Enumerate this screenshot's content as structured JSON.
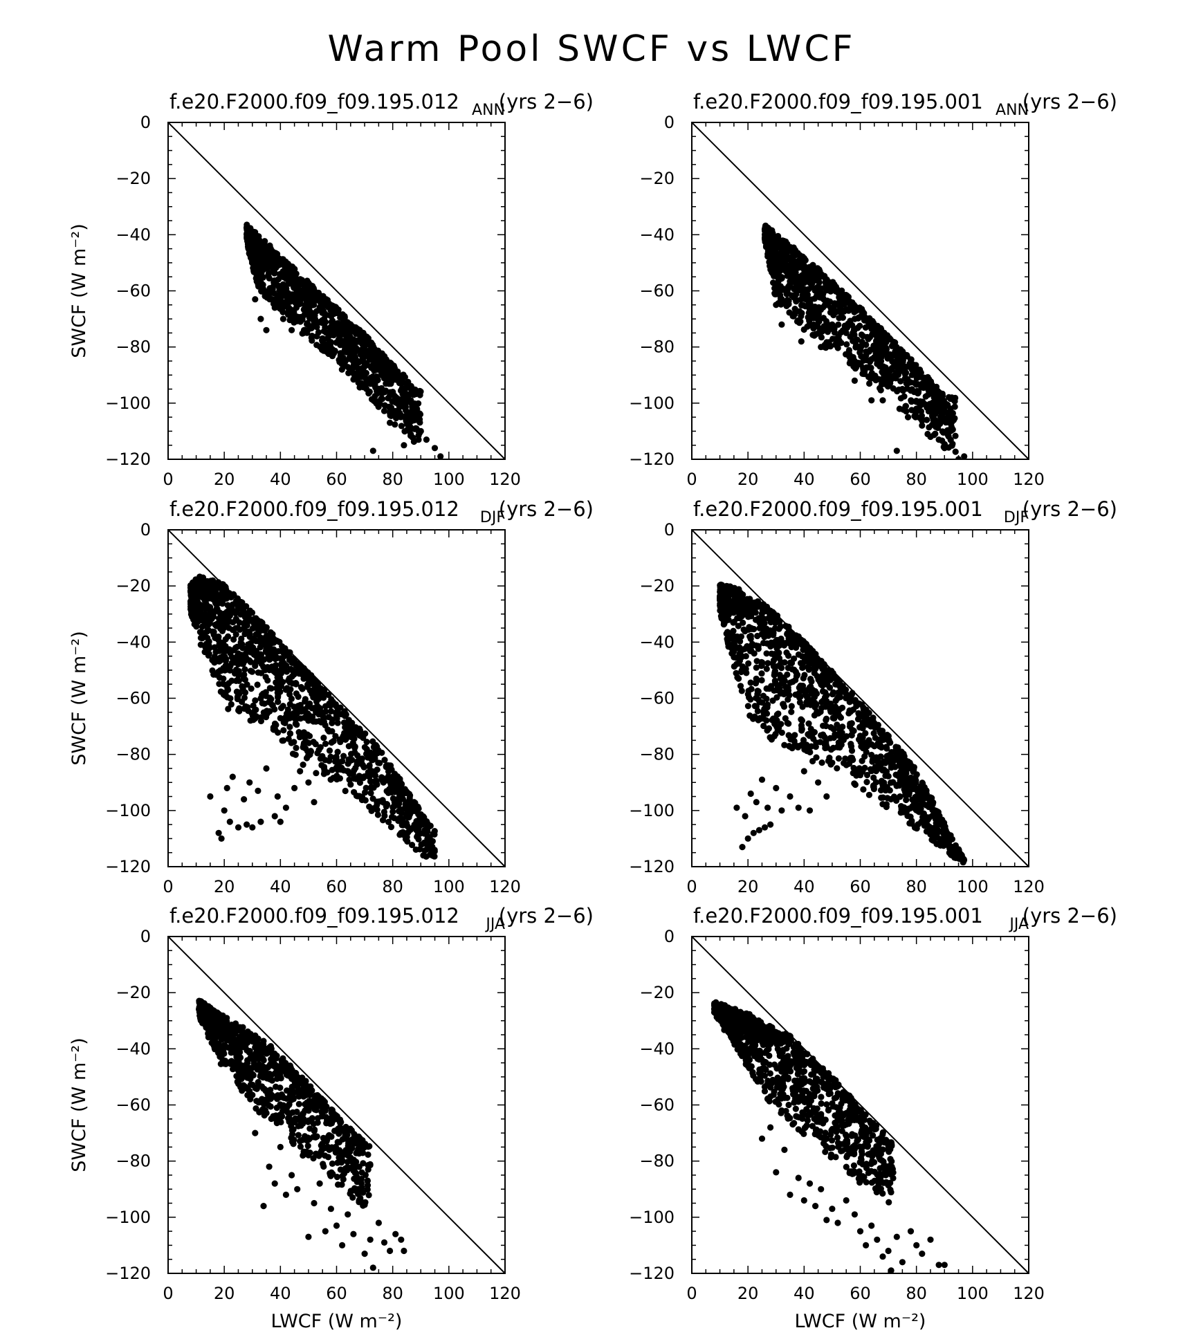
{
  "figure": {
    "title": "Warm Pool SWCF vs LWCF"
  },
  "chart_data": [
    {
      "type": "scatter",
      "case": "f.e20.F2000.f09_f09.195.012",
      "years": "(yrs 2−6)",
      "season": "ANN",
      "xlabel": "",
      "ylabel": "SWCF (W m⁻²)",
      "xlim": [
        0,
        120
      ],
      "ylim": [
        -120,
        0
      ],
      "xticks": [
        "0",
        "20",
        "40",
        "60",
        "80",
        "100",
        "120"
      ],
      "yticks": [
        "0",
        "−20",
        "−40",
        "−60",
        "−80",
        "−100",
        "−120"
      ],
      "reference_line": [
        [
          0,
          0
        ],
        [
          120,
          -120
        ]
      ],
      "marker_color": "#000000",
      "cloud": {
        "ridge": [
          [
            28,
            -37
          ],
          [
            40,
            -48
          ],
          [
            55,
            -62
          ],
          [
            70,
            -76
          ],
          [
            88,
            -95
          ]
        ],
        "lower": [
          [
            28,
            -43
          ],
          [
            32,
            -60
          ],
          [
            45,
            -72
          ],
          [
            62,
            -88
          ],
          [
            78,
            -104
          ],
          [
            90,
            -118
          ]
        ],
        "count": 1200
      },
      "x": [
        31,
        33,
        35,
        38,
        41,
        44,
        47,
        52,
        55,
        58,
        63,
        66,
        67,
        70,
        72,
        73,
        75,
        76,
        78,
        80,
        82,
        85,
        87,
        88,
        90,
        92,
        95,
        97,
        79,
        84,
        86
      ],
      "y": [
        -63,
        -70,
        -74,
        -66,
        -70,
        -74,
        -64,
        -71,
        -78,
        -67,
        -80,
        -84,
        -90,
        -86,
        -92,
        -117,
        -82,
        -90,
        -88,
        -96,
        -100,
        -99,
        -104,
        -106,
        -110,
        -113,
        -116,
        -119,
        -107,
        -115,
        -110
      ]
    },
    {
      "type": "scatter",
      "case": "f.e20.F2000.f09_f09.195.001",
      "years": "(yrs 2−6)",
      "season": "ANN",
      "xlabel": "",
      "ylabel": "",
      "xlim": [
        0,
        120
      ],
      "ylim": [
        -120,
        0
      ],
      "xticks": [
        "0",
        "20",
        "40",
        "60",
        "80",
        "100",
        "120"
      ],
      "yticks": [
        "0",
        "−20",
        "−40",
        "−60",
        "−80",
        "−100",
        "−120"
      ],
      "reference_line": [
        [
          0,
          0
        ],
        [
          120,
          -120
        ]
      ],
      "marker_color": "#000000",
      "cloud": {
        "ridge": [
          [
            26,
            -37
          ],
          [
            40,
            -48
          ],
          [
            55,
            -62
          ],
          [
            70,
            -76
          ],
          [
            90,
            -98
          ]
        ],
        "lower": [
          [
            26,
            -42
          ],
          [
            30,
            -64
          ],
          [
            42,
            -76
          ],
          [
            60,
            -90
          ],
          [
            78,
            -104
          ],
          [
            94,
            -120
          ]
        ],
        "count": 1100
      },
      "x": [
        30,
        32,
        36,
        39,
        42,
        46,
        50,
        55,
        58,
        60,
        64,
        66,
        68,
        70,
        73,
        75,
        77,
        80,
        82,
        84,
        86,
        88,
        90,
        92,
        95,
        97,
        74,
        85
      ],
      "y": [
        -65,
        -72,
        -69,
        -78,
        -70,
        -80,
        -72,
        -75,
        -92,
        -81,
        -99,
        -86,
        -99,
        -90,
        -117,
        -95,
        -105,
        -102,
        -108,
        -111,
        -106,
        -113,
        -116,
        -110,
        -120,
        -119,
        -102,
        -112
      ]
    },
    {
      "type": "scatter",
      "case": "f.e20.F2000.f09_f09.195.012",
      "years": "(yrs 2−6)",
      "season": "DJF",
      "xlabel": "",
      "ylabel": "SWCF (W m⁻²)",
      "xlim": [
        0,
        120
      ],
      "ylim": [
        -120,
        0
      ],
      "xticks": [
        "0",
        "20",
        "40",
        "60",
        "80",
        "100",
        "120"
      ],
      "yticks": [
        "0",
        "−20",
        "−40",
        "−60",
        "−80",
        "−100",
        "−120"
      ],
      "reference_line": [
        [
          0,
          0
        ],
        [
          120,
          -120
        ]
      ],
      "marker_color": "#000000",
      "cloud": {
        "ridge": [
          [
            8,
            -20
          ],
          [
            11,
            -17
          ],
          [
            20,
            -20
          ],
          [
            35,
            -35
          ],
          [
            55,
            -57
          ],
          [
            75,
            -78
          ],
          [
            95,
            -108
          ]
        ],
        "lower": [
          [
            7,
            -26
          ],
          [
            12,
            -42
          ],
          [
            22,
            -66
          ],
          [
            36,
            -70
          ],
          [
            48,
            -84
          ],
          [
            62,
            -92
          ],
          [
            78,
            -105
          ],
          [
            92,
            -117
          ]
        ],
        "count": 1300
      },
      "x": [
        15,
        18,
        19,
        20,
        21,
        22,
        23,
        25,
        27,
        28,
        29,
        30,
        32,
        33,
        35,
        38,
        39,
        40,
        42,
        45,
        47,
        50,
        52
      ],
      "y": [
        -95,
        -108,
        -110,
        -100,
        -92,
        -104,
        -88,
        -106,
        -96,
        -105,
        -90,
        -106,
        -93,
        -104,
        -85,
        -102,
        -95,
        -104,
        -99,
        -92,
        -86,
        -90,
        -97
      ]
    },
    {
      "type": "scatter",
      "case": "f.e20.F2000.f09_f09.195.001",
      "years": "(yrs 2−6)",
      "season": "DJF",
      "xlabel": "",
      "ylabel": "",
      "xlim": [
        0,
        120
      ],
      "ylim": [
        -120,
        0
      ],
      "xticks": [
        "0",
        "20",
        "40",
        "60",
        "80",
        "100",
        "120"
      ],
      "yticks": [
        "0",
        "−20",
        "−40",
        "−60",
        "−80",
        "−100",
        "−120"
      ],
      "reference_line": [
        [
          0,
          0
        ],
        [
          120,
          -120
        ]
      ],
      "marker_color": "#000000",
      "cloud": {
        "ridge": [
          [
            10,
            -20
          ],
          [
            15,
            -21
          ],
          [
            25,
            -26
          ],
          [
            40,
            -40
          ],
          [
            60,
            -62
          ],
          [
            80,
            -86
          ],
          [
            97,
            -118
          ]
        ],
        "lower": [
          [
            9,
            -24
          ],
          [
            14,
            -46
          ],
          [
            22,
            -70
          ],
          [
            38,
            -80
          ],
          [
            52,
            -88
          ],
          [
            66,
            -96
          ],
          [
            82,
            -108
          ],
          [
            95,
            -118
          ]
        ],
        "count": 1300
      },
      "x": [
        16,
        18,
        19,
        20,
        21,
        22,
        23,
        24,
        25,
        26,
        27,
        28,
        30,
        32,
        35,
        38,
        40,
        42,
        45,
        48,
        50
      ],
      "y": [
        -99,
        -113,
        -102,
        -110,
        -94,
        -108,
        -97,
        -107,
        -89,
        -106,
        -99,
        -105,
        -92,
        -100,
        -95,
        -99,
        -86,
        -100,
        -90,
        -95,
        -83
      ]
    },
    {
      "type": "scatter",
      "case": "f.e20.F2000.f09_f09.195.012",
      "years": "(yrs 2−6)",
      "season": "JJA",
      "xlabel": "LWCF (W m⁻²)",
      "ylabel": "SWCF (W m⁻²)",
      "xlim": [
        0,
        120
      ],
      "ylim": [
        -120,
        0
      ],
      "xticks": [
        "0",
        "20",
        "40",
        "60",
        "80",
        "100",
        "120"
      ],
      "yticks": [
        "0",
        "−20",
        "−40",
        "−60",
        "−80",
        "−100",
        "−120"
      ],
      "reference_line": [
        [
          0,
          0
        ],
        [
          120,
          -120
        ]
      ],
      "marker_color": "#000000",
      "cloud": {
        "ridge": [
          [
            11,
            -23
          ],
          [
            20,
            -29
          ],
          [
            35,
            -38
          ],
          [
            50,
            -53
          ],
          [
            62,
            -66
          ],
          [
            70,
            -74
          ]
        ],
        "lower": [
          [
            10,
            -26
          ],
          [
            18,
            -44
          ],
          [
            30,
            -60
          ],
          [
            45,
            -74
          ],
          [
            60,
            -88
          ],
          [
            72,
            -98
          ]
        ],
        "count": 950
      },
      "x": [
        31,
        34,
        36,
        38,
        40,
        42,
        44,
        46,
        48,
        50,
        52,
        54,
        56,
        58,
        60,
        62,
        64,
        66,
        68,
        70,
        72,
        73,
        75,
        77,
        79,
        81,
        83,
        84
      ],
      "y": [
        -70,
        -96,
        -82,
        -88,
        -75,
        -92,
        -85,
        -90,
        -78,
        -107,
        -95,
        -88,
        -105,
        -97,
        -103,
        -110,
        -99,
        -106,
        -94,
        -113,
        -108,
        -118,
        -102,
        -109,
        -112,
        -106,
        -108,
        -112
      ]
    },
    {
      "type": "scatter",
      "case": "f.e20.F2000.f09_f09.195.001",
      "years": "(yrs 2−6)",
      "season": "JJA",
      "xlabel": "LWCF (W m⁻²)",
      "ylabel": "",
      "xlim": [
        0,
        120
      ],
      "ylim": [
        -120,
        0
      ],
      "xticks": [
        "0",
        "20",
        "40",
        "60",
        "80",
        "100",
        "120"
      ],
      "yticks": [
        "0",
        "−20",
        "−40",
        "−60",
        "−80",
        "−100",
        "−120"
      ],
      "reference_line": [
        [
          0,
          0
        ],
        [
          120,
          -120
        ]
      ],
      "marker_color": "#000000",
      "cloud": {
        "ridge": [
          [
            8,
            -24
          ],
          [
            20,
            -28
          ],
          [
            35,
            -36
          ],
          [
            50,
            -50
          ],
          [
            62,
            -64
          ],
          [
            72,
            -74
          ]
        ],
        "lower": [
          [
            8,
            -27
          ],
          [
            16,
            -40
          ],
          [
            28,
            -60
          ],
          [
            42,
            -72
          ],
          [
            58,
            -86
          ],
          [
            72,
            -96
          ]
        ],
        "count": 1000
      },
      "x": [
        25,
        28,
        30,
        33,
        35,
        38,
        40,
        42,
        44,
        46,
        48,
        50,
        52,
        55,
        58,
        60,
        62,
        64,
        66,
        68,
        70,
        71,
        73,
        75,
        78,
        80,
        82,
        85,
        88,
        90
      ],
      "y": [
        -72,
        -68,
        -84,
        -76,
        -92,
        -86,
        -94,
        -88,
        -96,
        -90,
        -101,
        -97,
        -102,
        -94,
        -99,
        -105,
        -110,
        -103,
        -108,
        -114,
        -112,
        -119,
        -107,
        -116,
        -105,
        -110,
        -113,
        -108,
        -117,
        -117
      ]
    }
  ]
}
